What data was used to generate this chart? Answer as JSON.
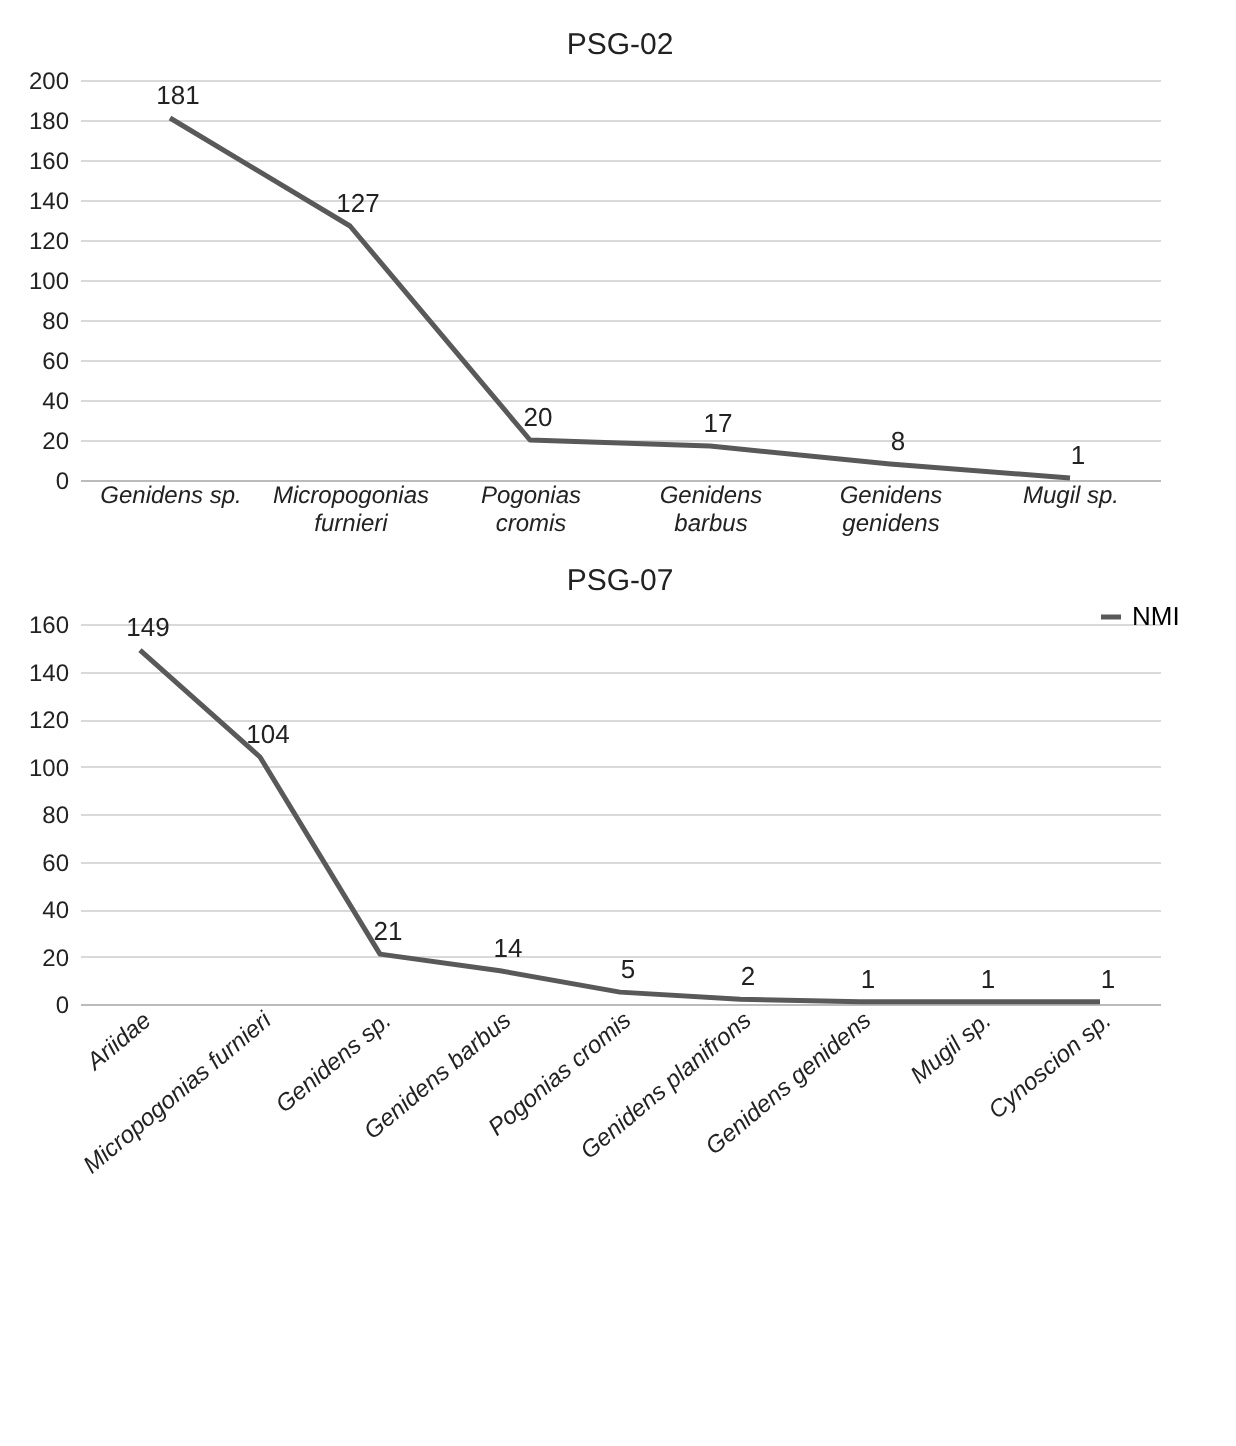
{
  "chart_data": [
    {
      "type": "line",
      "title": "PSG-02",
      "categories": [
        "Genidens sp.",
        "Micropogonias furnieri",
        "Pogonias cromis",
        "Genidens barbus",
        "Genidens genidens",
        "Mugil sp."
      ],
      "series": [
        {
          "color": "#595959",
          "values": [
            181,
            127,
            20,
            17,
            8,
            1
          ]
        }
      ],
      "ylim": [
        0,
        200
      ],
      "yticks": [
        0,
        20,
        40,
        60,
        80,
        100,
        120,
        140,
        160,
        180,
        200
      ],
      "grid": "y",
      "data_labels": true
    },
    {
      "type": "line",
      "title": "PSG-07",
      "categories": [
        "Ariidae",
        "Micropogonias furnieri",
        "Genidens sp.",
        "Genidens barbus",
        "Pogonias cromis",
        "Genidens planifrons",
        "Genidens genidens",
        "Mugil sp.",
        "Cynoscion sp."
      ],
      "series": [
        {
          "name": "NMI",
          "color": "#595959",
          "values": [
            149,
            104,
            21,
            14,
            5,
            2,
            1,
            1,
            1
          ]
        }
      ],
      "ylim": [
        0,
        160
      ],
      "yticks": [
        0,
        20,
        40,
        60,
        80,
        100,
        120,
        140,
        160
      ],
      "grid": "y",
      "data_labels": true,
      "legend": "top right"
    }
  ]
}
